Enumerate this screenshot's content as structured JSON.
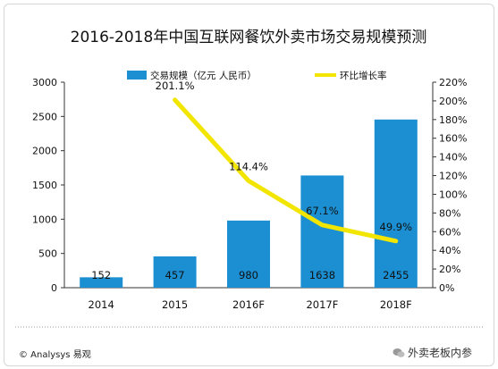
{
  "chart_data": {
    "type": "bar",
    "title": "2016-2018年中国互联网餐饮外卖市场交易规模预测",
    "categories": [
      "2014",
      "2015",
      "2016F",
      "2017F",
      "2018F"
    ],
    "series": [
      {
        "name": "交易规模（亿元 人民币）",
        "type": "bar",
        "axis": "left",
        "values": [
          152,
          457,
          980,
          1638,
          2455
        ],
        "labels": [
          "152",
          "457",
          "980",
          "1638",
          "2455"
        ]
      },
      {
        "name": "环比增长率",
        "type": "line",
        "axis": "right",
        "values": [
          null,
          201.1,
          114.4,
          67.1,
          49.9
        ],
        "labels": [
          "",
          "201.1%",
          "114.4%",
          "67.1%",
          "49.9%"
        ]
      }
    ],
    "ylim": [
      0,
      3000
    ],
    "yticks": [
      "0",
      "500",
      "1000",
      "1500",
      "2000",
      "2500",
      "3000"
    ],
    "y2lim": [
      0,
      220
    ],
    "y2ticks": [
      "0%",
      "20%",
      "40%",
      "60%",
      "80%",
      "100%",
      "120%",
      "140%",
      "160%",
      "180%",
      "200%",
      "220%"
    ],
    "legend_position": "top",
    "grid": false,
    "colors": {
      "bar": "#1b8fd2",
      "line": "#f2e500",
      "text": "#111111",
      "axis": "#333333"
    }
  },
  "footer": {
    "source": "© Analysys 易观",
    "wechat_mark": "外卖老板内参",
    "wechat_icon": "wechat-icon"
  }
}
